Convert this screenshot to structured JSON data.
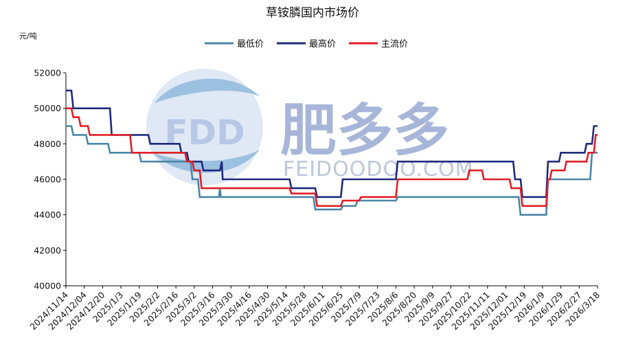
{
  "chart_data": {
    "type": "line",
    "title": "草铵膦国内市场价",
    "unit_label": "元/吨",
    "ylim": [
      40000,
      52000
    ],
    "y_ticks": [
      "40000",
      "42000",
      "44000",
      "46000",
      "48000",
      "50000",
      "52000"
    ],
    "x_tick_labels": [
      "2024/11/14",
      "2024/12/04",
      "2024/12/20",
      "2025/1/3",
      "2025/1/19",
      "2025/2/2",
      "2025/2/16",
      "2025/3/2",
      "2025/3/16",
      "2025/3/30",
      "2025/4/16",
      "2025/4/30",
      "2025/5/14",
      "2025/5/28",
      "2025/6/11",
      "2025/6/25",
      "2025/7/9",
      "2025/7/23",
      "2025/8/6",
      "2025/8/20",
      "2025/9/9",
      "2025/9/27",
      "2025/10/22",
      "2025/11/11",
      "2025/12/01",
      "2025/12/19",
      "2026/1/9",
      "2026/1/29",
      "2026/2/27",
      "2026/3/18"
    ],
    "legend_position": "top",
    "grid": false,
    "series": [
      {
        "name": "最低价",
        "color": "#4a86a6",
        "points": [
          [
            0,
            49000
          ],
          [
            0.3,
            49000
          ],
          [
            0.4,
            48500
          ],
          [
            1.1,
            48500
          ],
          [
            1.2,
            48000
          ],
          [
            2.3,
            48000
          ],
          [
            2.4,
            47500
          ],
          [
            4.0,
            47500
          ],
          [
            4.1,
            47000
          ],
          [
            6.8,
            47000
          ],
          [
            6.9,
            46000
          ],
          [
            7.2,
            46000
          ],
          [
            7.3,
            45000
          ],
          [
            8.35,
            45000
          ],
          [
            8.4,
            45500
          ],
          [
            8.45,
            45000
          ],
          [
            13.5,
            45000
          ],
          [
            13.6,
            44300
          ],
          [
            15.0,
            44300
          ],
          [
            15.1,
            44500
          ],
          [
            15.8,
            44500
          ],
          [
            15.9,
            44800
          ],
          [
            18.0,
            44800
          ],
          [
            18.1,
            45000
          ],
          [
            24.7,
            45000
          ],
          [
            24.8,
            44000
          ],
          [
            26.2,
            44000
          ],
          [
            26.3,
            46000
          ],
          [
            28.6,
            46000
          ],
          [
            28.7,
            47500
          ],
          [
            29.0,
            47500
          ]
        ]
      },
      {
        "name": "最高价",
        "color": "#1f2a7d",
        "points": [
          [
            0,
            51000
          ],
          [
            0.3,
            51000
          ],
          [
            0.4,
            50000
          ],
          [
            2.4,
            50000
          ],
          [
            2.5,
            48500
          ],
          [
            4.5,
            48500
          ],
          [
            4.6,
            48000
          ],
          [
            6.2,
            48000
          ],
          [
            6.3,
            47500
          ],
          [
            6.6,
            47500
          ],
          [
            6.7,
            47000
          ],
          [
            7.4,
            47000
          ],
          [
            7.5,
            46500
          ],
          [
            8.4,
            46500
          ],
          [
            8.5,
            47000
          ],
          [
            8.55,
            46000
          ],
          [
            12.2,
            46000
          ],
          [
            12.3,
            45500
          ],
          [
            13.6,
            45500
          ],
          [
            13.7,
            45000
          ],
          [
            15.0,
            45000
          ],
          [
            15.1,
            46000
          ],
          [
            18.0,
            46000
          ],
          [
            18.1,
            47000
          ],
          [
            24.4,
            47000
          ],
          [
            24.5,
            46000
          ],
          [
            24.8,
            46000
          ],
          [
            24.9,
            45000
          ],
          [
            26.2,
            45000
          ],
          [
            26.3,
            47000
          ],
          [
            26.9,
            47000
          ],
          [
            27.0,
            47500
          ],
          [
            28.3,
            47500
          ],
          [
            28.4,
            48000
          ],
          [
            28.7,
            48000
          ],
          [
            28.8,
            49000
          ],
          [
            29.0,
            49000
          ]
        ]
      },
      {
        "name": "主流价",
        "color": "#e01e26",
        "points": [
          [
            0,
            50000
          ],
          [
            0.3,
            50000
          ],
          [
            0.4,
            49500
          ],
          [
            0.7,
            49500
          ],
          [
            0.8,
            49000
          ],
          [
            1.2,
            49000
          ],
          [
            1.3,
            48500
          ],
          [
            3.5,
            48500
          ],
          [
            3.6,
            47500
          ],
          [
            6.5,
            47500
          ],
          [
            6.6,
            47000
          ],
          [
            6.9,
            47000
          ],
          [
            7.0,
            46500
          ],
          [
            7.3,
            46500
          ],
          [
            7.4,
            45500
          ],
          [
            12.2,
            45500
          ],
          [
            12.3,
            45200
          ],
          [
            13.6,
            45200
          ],
          [
            13.7,
            44500
          ],
          [
            15.0,
            44500
          ],
          [
            15.1,
            44800
          ],
          [
            16.0,
            44800
          ],
          [
            16.1,
            45000
          ],
          [
            18.0,
            45000
          ],
          [
            18.1,
            46000
          ],
          [
            21.9,
            46000
          ],
          [
            22.0,
            46500
          ],
          [
            22.7,
            46500
          ],
          [
            22.8,
            46000
          ],
          [
            24.2,
            46000
          ],
          [
            24.3,
            45500
          ],
          [
            24.8,
            45500
          ],
          [
            24.9,
            44500
          ],
          [
            26.2,
            44500
          ],
          [
            26.3,
            46000
          ],
          [
            26.4,
            46000
          ],
          [
            26.5,
            46500
          ],
          [
            27.2,
            46500
          ],
          [
            27.3,
            47000
          ],
          [
            28.4,
            47000
          ],
          [
            28.5,
            47500
          ],
          [
            28.8,
            47500
          ],
          [
            28.9,
            48500
          ],
          [
            29.0,
            48500
          ]
        ]
      }
    ]
  },
  "watermark": {
    "logo_text": "FDD",
    "brand_cn": "肥多多",
    "brand_en": "FEIDOODOO.COM"
  }
}
